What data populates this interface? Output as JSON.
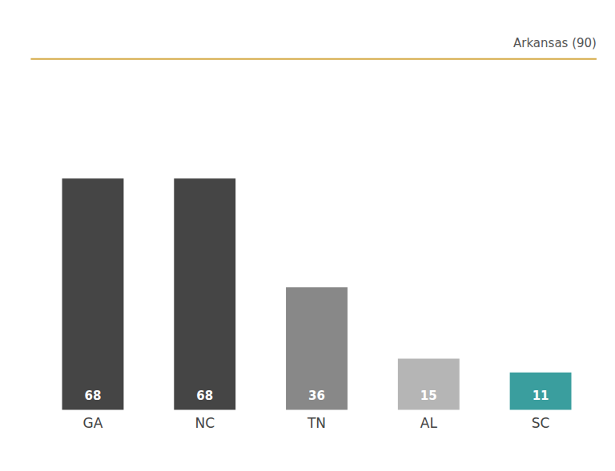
{
  "chart_data": {
    "type": "bar",
    "categories": [
      "GA",
      "NC",
      "TN",
      "AL",
      "SC"
    ],
    "values": [
      68,
      68,
      36,
      15,
      11
    ],
    "colors": [
      "#454545",
      "#454545",
      "#888888",
      "#b5b5b5",
      "#3a9e9e"
    ],
    "ylim": [
      0,
      90
    ],
    "data_labels": true,
    "tick_labels": "x",
    "grid": false,
    "annotation": "Arkansas (90)"
  }
}
